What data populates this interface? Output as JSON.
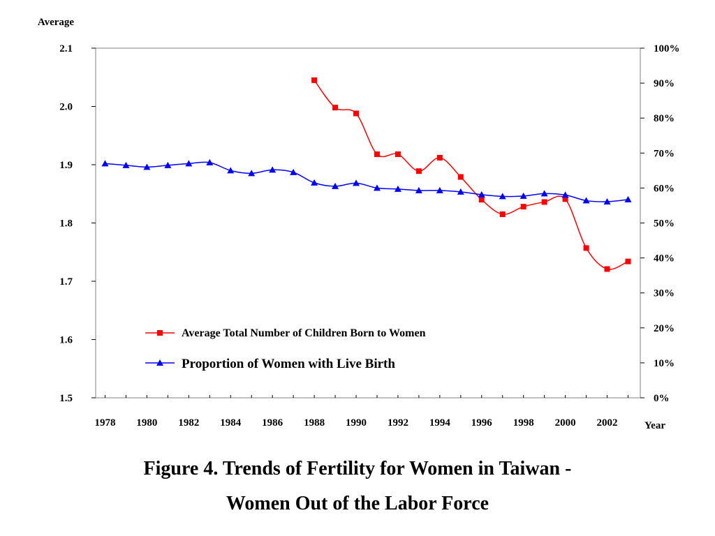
{
  "chart_data": {
    "type": "line",
    "left_axis_label": "Average",
    "x_axis_label": "Year",
    "x": [
      1978,
      1979,
      1980,
      1981,
      1982,
      1983,
      1984,
      1985,
      1986,
      1987,
      1988,
      1989,
      1990,
      1991,
      1992,
      1993,
      1994,
      1995,
      1996,
      1997,
      1998,
      1999,
      2000,
      2001,
      2002,
      2003
    ],
    "x_tick_labels": [
      "1978",
      "1980",
      "1982",
      "1984",
      "1986",
      "1988",
      "1990",
      "1992",
      "1994",
      "1996",
      "1998",
      "2000",
      "2002"
    ],
    "left_ylim": [
      1.5,
      2.1
    ],
    "left_tick_labels": [
      "2.1",
      "2.0",
      "1.9",
      "1.8",
      "1.7",
      "1.6",
      "1.5"
    ],
    "right_ylim": [
      0,
      100
    ],
    "right_tick_labels": [
      "100%",
      "90%",
      "80%",
      "70%",
      "60%",
      "50%",
      "40%",
      "30%",
      "20%",
      "10%",
      "0%"
    ],
    "series": [
      {
        "name": "Average Total Number of Children Born to Women",
        "axis": "left",
        "color": "#ff0000",
        "marker": "square",
        "x": [
          1988,
          1989,
          1990,
          1991,
          1992,
          1993,
          1994,
          1995,
          1996,
          1997,
          1998,
          1999,
          2000,
          2001,
          2002,
          2003
        ],
        "values": [
          2.045,
          1.998,
          1.988,
          1.918,
          1.918,
          1.889,
          1.912,
          1.879,
          1.84,
          1.815,
          1.828,
          1.836,
          1.841,
          1.757,
          1.721,
          1.734
        ]
      },
      {
        "name": "Proportion of Women with Live Birth",
        "axis": "right",
        "color": "#0000ff",
        "marker": "triangle",
        "x": [
          1978,
          1979,
          1980,
          1981,
          1982,
          1983,
          1984,
          1985,
          1986,
          1987,
          1988,
          1989,
          1990,
          1991,
          1992,
          1993,
          1994,
          1995,
          1996,
          1997,
          1998,
          1999,
          2000,
          2001,
          2002,
          2003
        ],
        "values": [
          67,
          66.5,
          66,
          66.5,
          67,
          67.3,
          65,
          64.2,
          65.2,
          64.5,
          61.5,
          60.5,
          61.4,
          60,
          59.7,
          59.3,
          59.3,
          58.9,
          58.1,
          57.6,
          57.7,
          58.4,
          58,
          56.4,
          56.1,
          56.7
        ]
      }
    ],
    "legend_position": "bottom-left inside plot",
    "grid": false
  },
  "caption": {
    "line1": "Figure 4. Trends of Fertility for Women in Taiwan -",
    "line2": "Women Out of the Labor Force"
  }
}
